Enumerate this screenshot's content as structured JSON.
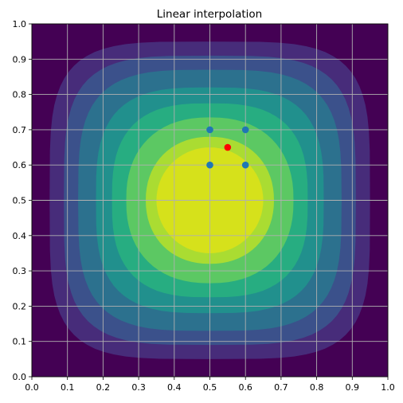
{
  "chart_data": {
    "type": "contour",
    "title": "Linear interpolation",
    "xlabel": "",
    "ylabel": "",
    "xlim": [
      0.0,
      1.0
    ],
    "ylim": [
      0.0,
      1.0
    ],
    "x_ticks": [
      "0.0",
      "0.1",
      "0.2",
      "0.3",
      "0.4",
      "0.5",
      "0.6",
      "0.7",
      "0.8",
      "0.9",
      "1.0"
    ],
    "y_ticks": [
      "0.0",
      "0.1",
      "0.2",
      "0.3",
      "0.4",
      "0.5",
      "0.6",
      "0.7",
      "0.8",
      "0.9",
      "1.0"
    ],
    "grid": true,
    "colormap": "viridis",
    "fill_levels": [
      {
        "color": "#440154",
        "rx": 0.5,
        "ry": 0.5
      },
      {
        "color": "#472c7a",
        "rx": 0.45,
        "ry": 0.45
      },
      {
        "color": "#3b518b",
        "rx": 0.41,
        "ry": 0.41
      },
      {
        "color": "#2c718e",
        "rx": 0.37,
        "ry": 0.37
      },
      {
        "color": "#21908d",
        "rx": 0.32,
        "ry": 0.32
      },
      {
        "color": "#27ad81",
        "rx": 0.275,
        "ry": 0.275
      },
      {
        "color": "#5cc863",
        "rx": 0.235,
        "ry": 0.235
      },
      {
        "color": "#aadc32",
        "rx": 0.18,
        "ry": 0.18
      },
      {
        "color": "#d6e11b",
        "rx": 0.15,
        "ry": 0.15
      }
    ],
    "grid_points": {
      "color": "#1f77b4",
      "points": [
        [
          0.5,
          0.7
        ],
        [
          0.6,
          0.7
        ],
        [
          0.5,
          0.6
        ],
        [
          0.6,
          0.6
        ]
      ]
    },
    "query_point": {
      "color": "#ff0000",
      "point": [
        0.55,
        0.65
      ]
    }
  }
}
